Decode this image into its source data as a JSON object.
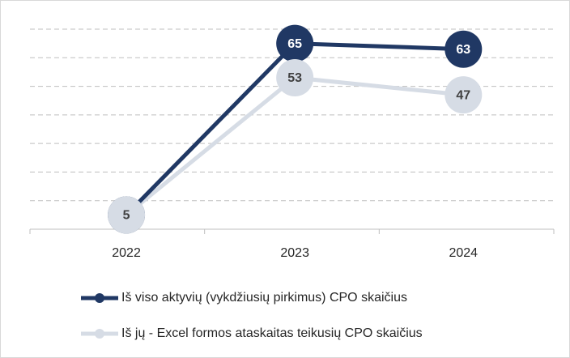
{
  "chart_data": {
    "type": "line",
    "categories": [
      "2022",
      "2023",
      "2024"
    ],
    "series": [
      {
        "name": "Iš viso aktyvių (vykdžiusių pirkimus) CPO skaičius",
        "color": "#203864",
        "values": [
          5,
          65,
          63
        ]
      },
      {
        "name": "Iš jų - Excel formos ataskaitas teikusių CPO skaičius",
        "color": "#d6dce5",
        "values": [
          5,
          53,
          47
        ]
      }
    ],
    "ylim": [
      0,
      70
    ],
    "yticks": [
      0,
      10,
      20,
      30,
      40,
      50,
      60,
      70
    ],
    "grid": true,
    "legend": "bottom"
  }
}
